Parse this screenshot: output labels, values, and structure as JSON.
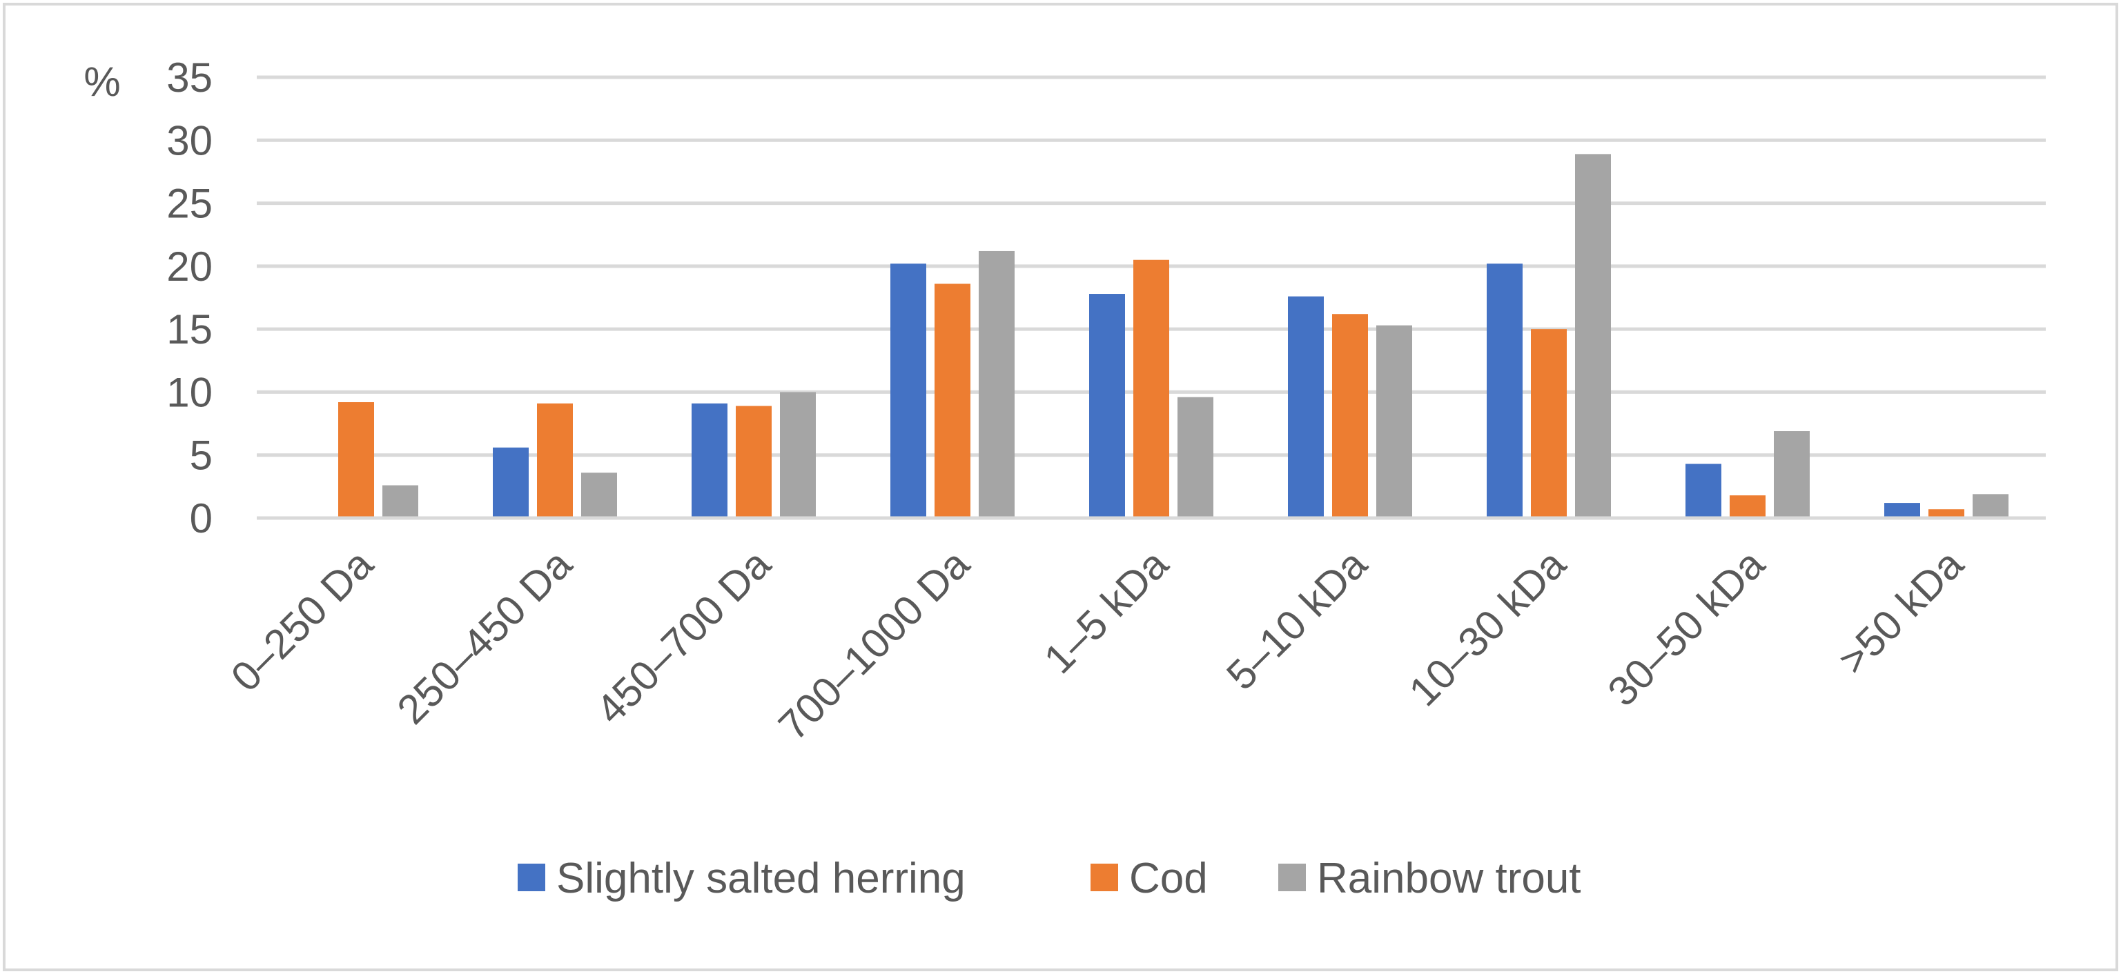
{
  "chart_data": {
    "type": "bar",
    "title": "",
    "ylabel": "%",
    "xlabel": "",
    "ylim": [
      0,
      35
    ],
    "yticks": [
      0,
      5,
      10,
      15,
      20,
      25,
      30,
      35
    ],
    "grid": true,
    "legend_position": "bottom",
    "categories": [
      "0–250 Da",
      "250–450 Da",
      "450–700 Da",
      "700–1000 Da",
      "1–5 kDa",
      "5–10 kDa",
      "10–30 kDa",
      "30–50 kDa",
      ">50 kDa"
    ],
    "series": [
      {
        "name": "Slightly salted herring",
        "color": "#4472c4",
        "values": [
          0,
          5.6,
          9.1,
          20.2,
          17.8,
          17.6,
          20.2,
          4.3,
          1.2
        ]
      },
      {
        "name": "Cod",
        "color": "#ed7d31",
        "values": [
          9.2,
          9.1,
          8.9,
          18.6,
          20.5,
          16.2,
          15.0,
          1.8,
          0.7
        ]
      },
      {
        "name": "Rainbow trout",
        "color": "#a5a5a5",
        "values": [
          2.6,
          3.6,
          10.0,
          21.2,
          9.6,
          15.3,
          28.9,
          6.9,
          1.9
        ]
      }
    ]
  }
}
